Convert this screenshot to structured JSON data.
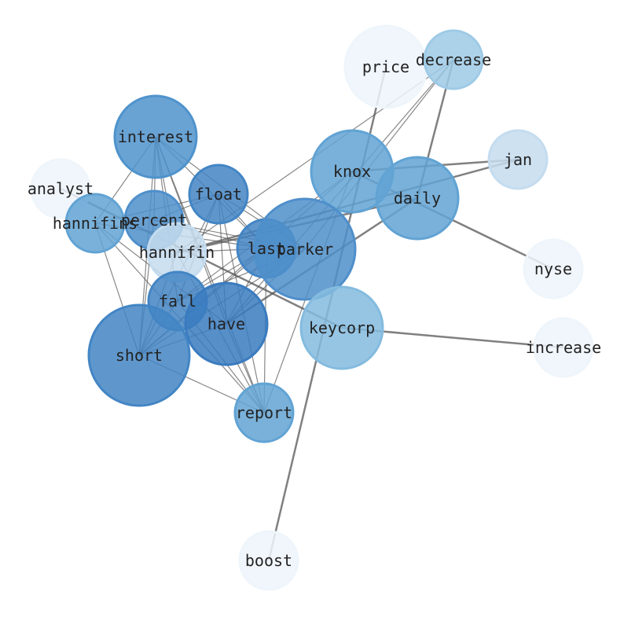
{
  "nodes": [
    {
      "id": "price",
      "label": "price",
      "color": "#eef5fb"
    },
    {
      "id": "decrease",
      "label": "decrease",
      "color": "#9ecae6"
    },
    {
      "id": "interest",
      "label": "interest",
      "color": "#4f93cc"
    },
    {
      "id": "knox",
      "label": "knox",
      "color": "#61a3d4"
    },
    {
      "id": "jan",
      "label": "jan",
      "color": "#c4dcef"
    },
    {
      "id": "daily",
      "label": "daily",
      "color": "#61a3d4"
    },
    {
      "id": "analyst",
      "label": "analyst",
      "color": "#eef5fb"
    },
    {
      "id": "float",
      "label": "float",
      "color": "#4385c4"
    },
    {
      "id": "percent",
      "label": "percent",
      "color": "#4f8fca"
    },
    {
      "id": "hannifins",
      "label": "hannifins",
      "color": "#61a3d4"
    },
    {
      "id": "hannifin",
      "label": "hannifin",
      "color": "#c4dcef"
    },
    {
      "id": "last",
      "label": "last",
      "color": "#4385c4"
    },
    {
      "id": "parker",
      "label": "parker",
      "color": "#4f8fca"
    },
    {
      "id": "nyse",
      "label": "nyse",
      "color": "#eef5fb"
    },
    {
      "id": "fall",
      "label": "fall",
      "color": "#4385c4"
    },
    {
      "id": "have",
      "label": "have",
      "color": "#3a7bbf"
    },
    {
      "id": "keycorp",
      "label": "keycorp",
      "color": "#84bbdf"
    },
    {
      "id": "increase",
      "label": "increase",
      "color": "#eef5fb"
    },
    {
      "id": "short",
      "label": "short",
      "color": "#4385c4"
    },
    {
      "id": "report",
      "label": "report",
      "color": "#61a3d4"
    },
    {
      "id": "boost",
      "label": "boost",
      "color": "#eef5fb"
    }
  ],
  "edges": [
    [
      "price",
      "boost",
      2
    ],
    [
      "decrease",
      "daily",
      2
    ],
    [
      "decrease",
      "hannifin",
      1
    ],
    [
      "decrease",
      "parker",
      1
    ],
    [
      "decrease",
      "have",
      1
    ],
    [
      "jan",
      "knox",
      2
    ],
    [
      "jan",
      "hannifin",
      2
    ],
    [
      "daily",
      "hannifin",
      2
    ],
    [
      "daily",
      "have",
      1.5
    ],
    [
      "knox",
      "nyse",
      2
    ],
    [
      "knox",
      "short",
      1
    ],
    [
      "knox",
      "fall",
      1
    ],
    [
      "knox",
      "report",
      1
    ],
    [
      "keycorp",
      "increase",
      2
    ],
    [
      "analyst",
      "keycorp",
      2
    ],
    [
      "interest",
      "hannifins",
      1
    ],
    [
      "interest",
      "percent",
      1
    ],
    [
      "interest",
      "short",
      1
    ],
    [
      "interest",
      "fall",
      1
    ],
    [
      "interest",
      "have",
      1
    ],
    [
      "interest",
      "last",
      1
    ],
    [
      "interest",
      "parker",
      1
    ],
    [
      "interest",
      "hannifin",
      1
    ],
    [
      "interest",
      "report",
      1
    ],
    [
      "float",
      "hannifins",
      1
    ],
    [
      "float",
      "short",
      1
    ],
    [
      "float",
      "fall",
      1
    ],
    [
      "float",
      "have",
      1
    ],
    [
      "float",
      "report",
      1
    ],
    [
      "float",
      "last",
      1
    ],
    [
      "float",
      "parker",
      1
    ],
    [
      "float",
      "percent",
      1
    ],
    [
      "percent",
      "last",
      1
    ],
    [
      "percent",
      "short",
      1
    ],
    [
      "percent",
      "parker",
      1
    ],
    [
      "hannifins",
      "short",
      1
    ],
    [
      "hannifins",
      "report",
      1
    ],
    [
      "hannifins",
      "last",
      1
    ],
    [
      "hannifins",
      "have",
      1
    ],
    [
      "hannifin",
      "short",
      1
    ],
    [
      "hannifin",
      "report",
      1
    ],
    [
      "hannifin",
      "last",
      1
    ],
    [
      "last",
      "short",
      1
    ],
    [
      "last",
      "report",
      1
    ],
    [
      "last",
      "have",
      1
    ],
    [
      "last",
      "fall",
      1
    ],
    [
      "parker",
      "short",
      1
    ],
    [
      "parker",
      "have",
      1
    ],
    [
      "parker",
      "fall",
      1
    ],
    [
      "fall",
      "short",
      1
    ],
    [
      "fall",
      "report",
      1
    ],
    [
      "have",
      "short",
      1
    ],
    [
      "have",
      "report",
      1
    ],
    [
      "short",
      "report",
      1
    ]
  ]
}
